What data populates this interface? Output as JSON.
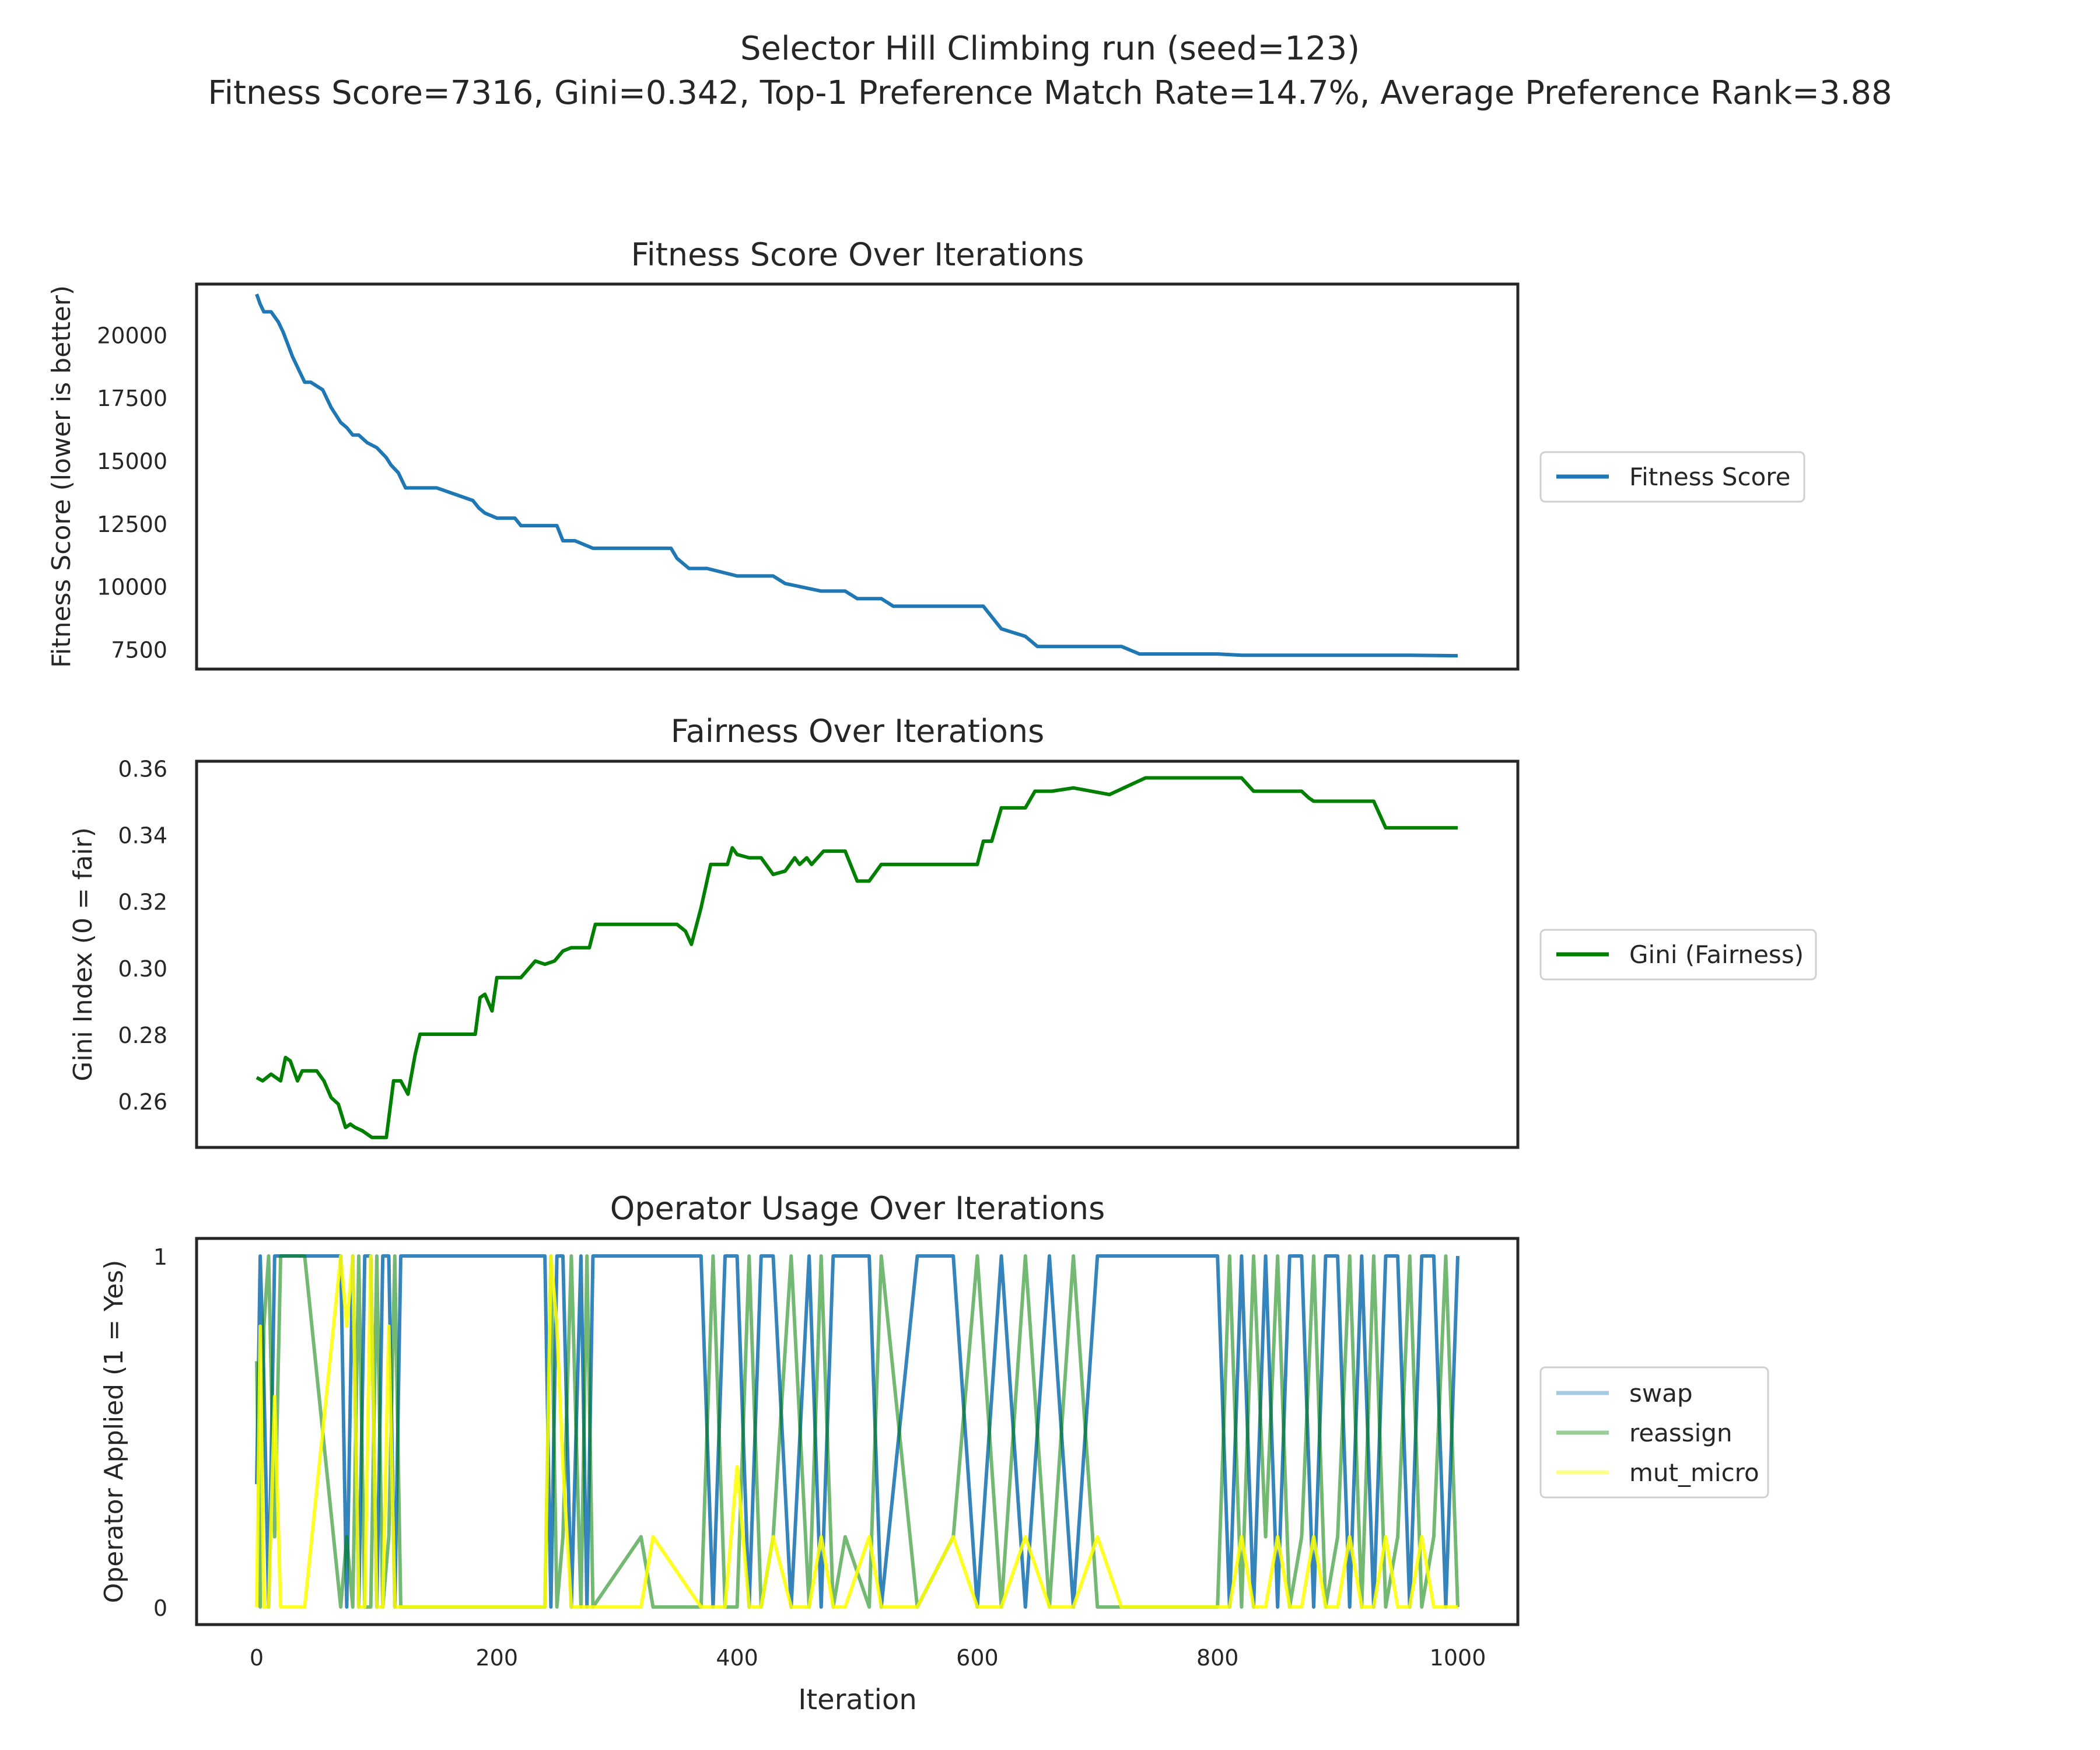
{
  "figure": {
    "title_line1": "Selector Hill Climbing run (seed=123)",
    "title_line2": "Fitness Score=7316, Gini=0.342, Top-1 Preference Match Rate=14.7%, Average Preference Rank=3.88"
  },
  "chart_data": [
    {
      "type": "line",
      "title": "Fitness Score Over Iterations",
      "xlabel": "",
      "ylabel": "Fitness Score (lower is better)",
      "xlim": [
        -50,
        1050
      ],
      "ylim": [
        6700,
        22000
      ],
      "yticks": [
        7500,
        10000,
        12500,
        15000,
        17500,
        20000
      ],
      "ytick_labels": [
        "7500",
        "10000",
        "12500",
        "15000",
        "17500",
        "20000"
      ],
      "xticks_visible": false,
      "grid": false,
      "legend_position": "right",
      "color": "#1f77b4",
      "series": [
        {
          "name": "Fitness Score",
          "color": "#1f77b4",
          "x": [
            0,
            3,
            6,
            12,
            18,
            22,
            26,
            30,
            34,
            40,
            45,
            55,
            62,
            70,
            75,
            80,
            85,
            92,
            100,
            108,
            112,
            118,
            124,
            130,
            150,
            180,
            185,
            190,
            200,
            215,
            220,
            250,
            255,
            265,
            280,
            300,
            320,
            345,
            350,
            360,
            375,
            400,
            430,
            440,
            470,
            490,
            500,
            520,
            530,
            580,
            605,
            610,
            620,
            640,
            650,
            680,
            720,
            735,
            760,
            800,
            820,
            900,
            960,
            1000
          ],
          "y": [
            21600,
            21200,
            20900,
            20900,
            20500,
            20100,
            19600,
            19100,
            18700,
            18100,
            18100,
            17800,
            17100,
            16500,
            16300,
            16000,
            16000,
            15700,
            15500,
            15100,
            14800,
            14500,
            13900,
            13900,
            13900,
            13400,
            13100,
            12900,
            12700,
            12700,
            12400,
            12400,
            11800,
            11800,
            11500,
            11500,
            11500,
            11500,
            11100,
            10700,
            10700,
            10400,
            10400,
            10100,
            9800,
            9800,
            9500,
            9500,
            9200,
            9200,
            9200,
            8900,
            8300,
            8000,
            7600,
            7600,
            7600,
            7300,
            7300,
            7300,
            7250,
            7250,
            7250,
            7230
          ]
        }
      ]
    },
    {
      "type": "line",
      "title": "Fairness Over Iterations",
      "xlabel": "",
      "ylabel": "Gini Index (0 = fair)",
      "xlim": [
        -50,
        1050
      ],
      "ylim": [
        0.246,
        0.362
      ],
      "yticks": [
        0.26,
        0.28,
        0.3,
        0.32,
        0.34,
        0.36
      ],
      "ytick_labels": [
        "0.26",
        "0.28",
        "0.30",
        "0.32",
        "0.34",
        "0.36"
      ],
      "xticks_visible": false,
      "grid": false,
      "legend_position": "right",
      "series": [
        {
          "name": "Gini (Fairness)",
          "color": "#008000",
          "x": [
            0,
            5,
            12,
            20,
            24,
            28,
            34,
            38,
            42,
            50,
            56,
            62,
            68,
            74,
            78,
            82,
            88,
            96,
            100,
            108,
            114,
            120,
            126,
            132,
            136,
            150,
            170,
            182,
            186,
            190,
            196,
            200,
            210,
            220,
            232,
            240,
            248,
            255,
            262,
            268,
            272,
            277,
            282,
            290,
            310,
            330,
            350,
            357,
            362,
            370,
            378,
            385,
            392,
            396,
            400,
            410,
            420,
            430,
            440,
            448,
            452,
            458,
            462,
            472,
            482,
            490,
            500,
            510,
            520,
            532,
            552,
            572,
            600,
            605,
            612,
            620,
            640,
            648,
            662,
            680,
            710,
            740,
            760,
            790,
            820,
            830,
            870,
            876,
            880,
            900,
            930,
            940,
            980,
            1000
          ],
          "y": [
            0.267,
            0.266,
            0.268,
            0.266,
            0.273,
            0.272,
            0.266,
            0.269,
            0.269,
            0.269,
            0.266,
            0.261,
            0.259,
            0.252,
            0.253,
            0.252,
            0.251,
            0.249,
            0.249,
            0.249,
            0.266,
            0.266,
            0.262,
            0.274,
            0.28,
            0.28,
            0.28,
            0.28,
            0.291,
            0.292,
            0.287,
            0.297,
            0.297,
            0.297,
            0.302,
            0.301,
            0.302,
            0.305,
            0.306,
            0.306,
            0.306,
            0.306,
            0.313,
            0.313,
            0.313,
            0.313,
            0.313,
            0.311,
            0.307,
            0.318,
            0.331,
            0.331,
            0.331,
            0.336,
            0.334,
            0.333,
            0.333,
            0.328,
            0.329,
            0.333,
            0.331,
            0.333,
            0.331,
            0.335,
            0.335,
            0.335,
            0.326,
            0.326,
            0.331,
            0.331,
            0.331,
            0.331,
            0.331,
            0.338,
            0.338,
            0.348,
            0.348,
            0.353,
            0.353,
            0.354,
            0.352,
            0.357,
            0.357,
            0.357,
            0.357,
            0.353,
            0.353,
            0.351,
            0.35,
            0.35,
            0.35,
            0.342,
            0.342,
            0.342
          ]
        }
      ]
    },
    {
      "type": "line",
      "title": "Operator Usage Over Iterations",
      "xlabel": "Iteration",
      "ylabel": "Operator Applied (1 = Yes)",
      "xlim": [
        -50,
        1050
      ],
      "ylim": [
        -0.05,
        1.05
      ],
      "xticks": [
        0,
        200,
        400,
        600,
        800,
        1000
      ],
      "xtick_labels": [
        "0",
        "200",
        "400",
        "600",
        "800",
        "1000"
      ],
      "yticks": [
        0,
        1
      ],
      "ytick_labels": [
        "0",
        "1"
      ],
      "grid": false,
      "legend_position": "right",
      "series": [
        {
          "name": "swap",
          "color": "#1f77b4",
          "x": [
            0,
            3,
            6,
            10,
            15,
            20,
            40,
            70,
            75,
            80,
            85,
            90,
            95,
            100,
            105,
            110,
            115,
            120,
            125,
            130,
            240,
            245,
            250,
            255,
            262,
            270,
            275,
            280,
            320,
            330,
            370,
            380,
            390,
            400,
            410,
            420,
            430,
            445,
            460,
            470,
            480,
            490,
            510,
            520,
            550,
            580,
            600,
            620,
            640,
            660,
            680,
            700,
            720,
            800,
            810,
            820,
            830,
            840,
            850,
            860,
            870,
            880,
            890,
            900,
            910,
            920,
            930,
            940,
            950,
            960,
            970,
            980,
            990,
            1000
          ],
          "y": [
            0.35,
            1,
            0.65,
            0,
            1,
            1,
            1,
            1,
            0,
            1,
            0,
            1,
            1,
            0,
            1,
            1,
            0,
            1,
            1,
            1,
            1,
            0,
            1,
            1,
            0,
            1,
            0,
            1,
            1,
            1,
            1,
            0,
            1,
            1,
            0,
            1,
            1,
            0,
            1,
            0,
            1,
            1,
            1,
            0,
            1,
            1,
            0,
            1,
            0,
            1,
            0,
            1,
            1,
            1,
            0,
            1,
            0,
            1,
            0,
            1,
            1,
            0,
            1,
            1,
            0,
            1,
            0,
            1,
            1,
            0,
            1,
            1,
            0,
            1
          ]
        },
        {
          "name": "reassign",
          "color": "#008000",
          "x": [
            0,
            3,
            6,
            10,
            15,
            20,
            40,
            70,
            75,
            80,
            85,
            90,
            95,
            100,
            105,
            110,
            115,
            120,
            125,
            130,
            240,
            245,
            250,
            255,
            262,
            270,
            275,
            280,
            320,
            330,
            370,
            380,
            390,
            400,
            410,
            420,
            430,
            445,
            460,
            470,
            480,
            490,
            510,
            520,
            550,
            580,
            600,
            620,
            640,
            660,
            680,
            700,
            720,
            800,
            810,
            820,
            830,
            840,
            850,
            860,
            870,
            880,
            890,
            900,
            910,
            920,
            930,
            940,
            950,
            960,
            970,
            980,
            990,
            1000
          ],
          "y": [
            0.7,
            0,
            0.8,
            1,
            0.2,
            1,
            1,
            0,
            0.2,
            0,
            1,
            0,
            0,
            1,
            0,
            0.2,
            1,
            0,
            0,
            0,
            0,
            1,
            0,
            0.2,
            1,
            0,
            1,
            0,
            0.2,
            0,
            0,
            1,
            0,
            0,
            1,
            0,
            0.2,
            1,
            0,
            1,
            0,
            0.2,
            0,
            1,
            0,
            0.2,
            1,
            0,
            1,
            0,
            1,
            0,
            0,
            0,
            1,
            0,
            1,
            0.2,
            1,
            0,
            0.2,
            1,
            0,
            0.2,
            1,
            0,
            1,
            0,
            0.2,
            1,
            0,
            0.2,
            1,
            0
          ]
        },
        {
          "name": "mut_micro",
          "color": "#ffff00",
          "x": [
            0,
            3,
            6,
            10,
            15,
            20,
            40,
            70,
            75,
            80,
            85,
            90,
            95,
            100,
            105,
            110,
            115,
            120,
            125,
            130,
            240,
            245,
            250,
            255,
            262,
            270,
            275,
            280,
            320,
            330,
            370,
            380,
            390,
            400,
            410,
            420,
            430,
            445,
            460,
            470,
            480,
            490,
            510,
            520,
            550,
            580,
            600,
            620,
            640,
            660,
            680,
            700,
            720,
            800,
            810,
            820,
            830,
            840,
            850,
            860,
            870,
            880,
            890,
            900,
            910,
            920,
            930,
            940,
            950,
            960,
            970,
            980,
            990,
            1000
          ],
          "y": [
            0,
            0.8,
            0,
            0,
            0.6,
            0,
            0,
            1,
            0.8,
            1,
            0,
            0,
            1,
            0,
            0,
            0.8,
            0,
            0,
            0,
            0,
            0,
            1,
            0.8,
            0.4,
            0,
            0,
            0,
            0,
            0,
            0.2,
            0,
            0,
            0,
            0.4,
            0,
            0,
            0.2,
            0,
            0,
            0.2,
            0,
            0,
            0.2,
            0,
            0,
            0.2,
            0,
            0,
            0.2,
            0,
            0,
            0.2,
            0,
            0,
            0,
            0.2,
            0,
            0,
            0.2,
            0,
            0,
            0.2,
            0,
            0,
            0.2,
            0,
            0,
            0.2,
            0,
            0,
            0.2,
            0,
            0,
            0
          ]
        }
      ]
    }
  ]
}
